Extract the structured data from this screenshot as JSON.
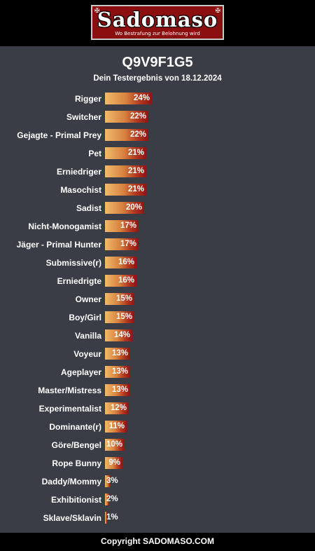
{
  "header": {
    "logo_text": "Sadomaso",
    "logo_tagline": "Wo Bestrafung zur Belohnung wird"
  },
  "main": {
    "title": "Q9V9F1G5",
    "subtitle": "Dein Testergebnis von 18.12.2024"
  },
  "results": [
    {
      "label": "Rigger",
      "percent": 24,
      "percent_label": "24%"
    },
    {
      "label": "Switcher",
      "percent": 22,
      "percent_label": "22%"
    },
    {
      "label": "Gejagte - Primal Prey",
      "percent": 22,
      "percent_label": "22%"
    },
    {
      "label": "Pet",
      "percent": 21,
      "percent_label": "21%"
    },
    {
      "label": "Erniedriger",
      "percent": 21,
      "percent_label": "21%"
    },
    {
      "label": "Masochist",
      "percent": 21,
      "percent_label": "21%"
    },
    {
      "label": "Sadist",
      "percent": 20,
      "percent_label": "20%"
    },
    {
      "label": "Nicht-Monogamist",
      "percent": 17,
      "percent_label": "17%"
    },
    {
      "label": "Jäger - Primal Hunter",
      "percent": 17,
      "percent_label": "17%"
    },
    {
      "label": "Submissive(r)",
      "percent": 16,
      "percent_label": "16%"
    },
    {
      "label": "Erniedrigte",
      "percent": 16,
      "percent_label": "16%"
    },
    {
      "label": "Owner",
      "percent": 15,
      "percent_label": "15%"
    },
    {
      "label": "Boy/Girl",
      "percent": 15,
      "percent_label": "15%"
    },
    {
      "label": "Vanilla",
      "percent": 14,
      "percent_label": "14%"
    },
    {
      "label": "Voyeur",
      "percent": 13,
      "percent_label": "13%"
    },
    {
      "label": "Ageplayer",
      "percent": 13,
      "percent_label": "13%"
    },
    {
      "label": "Master/Mistress",
      "percent": 13,
      "percent_label": "13%"
    },
    {
      "label": "Experimentalist",
      "percent": 12,
      "percent_label": "12%"
    },
    {
      "label": "Dominante(r)",
      "percent": 11,
      "percent_label": "11%"
    },
    {
      "label": "Göre/Bengel",
      "percent": 10,
      "percent_label": "10%"
    },
    {
      "label": "Rope Bunny",
      "percent": 9,
      "percent_label": "9%"
    },
    {
      "label": "Daddy/Mommy",
      "percent": 3,
      "percent_label": "3%"
    },
    {
      "label": "Exhibitionist",
      "percent": 2,
      "percent_label": "2%"
    },
    {
      "label": "Sklave/Sklavin",
      "percent": 1,
      "percent_label": "1%"
    }
  ],
  "footer": {
    "copyright": "Copyright SADOMASO.COM"
  },
  "colors": {
    "bar_start": "#f2bb6a",
    "bar_end": "#8f1414",
    "panel_background": "#3a3d45",
    "logo_background": "#8c0f0f"
  }
}
